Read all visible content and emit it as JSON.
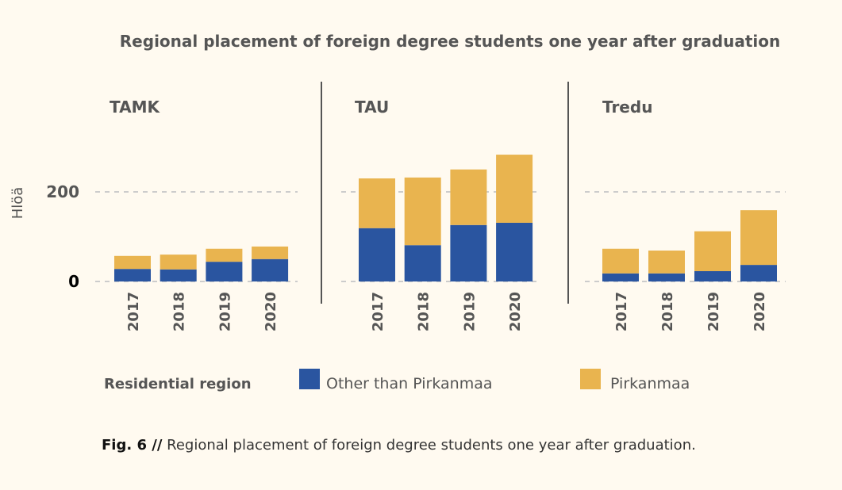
{
  "title": "Regional placement of foreign degree students one year after graduation",
  "y_label": "Hlöä",
  "legend_title": "Residential region",
  "caption_label": "Fig. 6 //",
  "caption_text": "Regional placement of foreign degree students one year after graduation.",
  "chart_data": [
    {
      "type": "stacked_bar",
      "title": "TAMK",
      "categories": [
        "2017",
        "2018",
        "2019",
        "2020"
      ],
      "series": [
        {
          "name": "Other than Pirkanmaa",
          "color": "#2a55a0",
          "values": [
            28,
            27,
            44,
            50
          ]
        },
        {
          "name": "Pirkanmaa",
          "color": "#e9b44f",
          "values": [
            29,
            33,
            29,
            28
          ]
        }
      ],
      "ylim": [
        0,
        330
      ],
      "yticks": [
        0,
        200
      ],
      "grid": true
    },
    {
      "type": "stacked_bar",
      "title": "TAU",
      "categories": [
        "2017",
        "2018",
        "2019",
        "2020"
      ],
      "series": [
        {
          "name": "Other than Pirkanmaa",
          "color": "#2a55a0",
          "values": [
            119,
            81,
            126,
            131
          ]
        },
        {
          "name": "Pirkanmaa",
          "color": "#e9b44f",
          "values": [
            111,
            151,
            124,
            152
          ]
        }
      ],
      "ylim": [
        0,
        330
      ],
      "yticks": [
        0,
        200
      ],
      "grid": true
    },
    {
      "type": "stacked_bar",
      "title": "Tredu",
      "categories": [
        "2017",
        "2018",
        "2019",
        "2020"
      ],
      "series": [
        {
          "name": "Other than Pirkanmaa",
          "color": "#2a55a0",
          "values": [
            18,
            18,
            23,
            37
          ]
        },
        {
          "name": "Pirkanmaa",
          "color": "#e9b44f",
          "values": [
            55,
            51,
            89,
            122
          ]
        }
      ],
      "ylim": [
        0,
        330
      ],
      "yticks": [
        0,
        200
      ],
      "grid": true
    }
  ]
}
